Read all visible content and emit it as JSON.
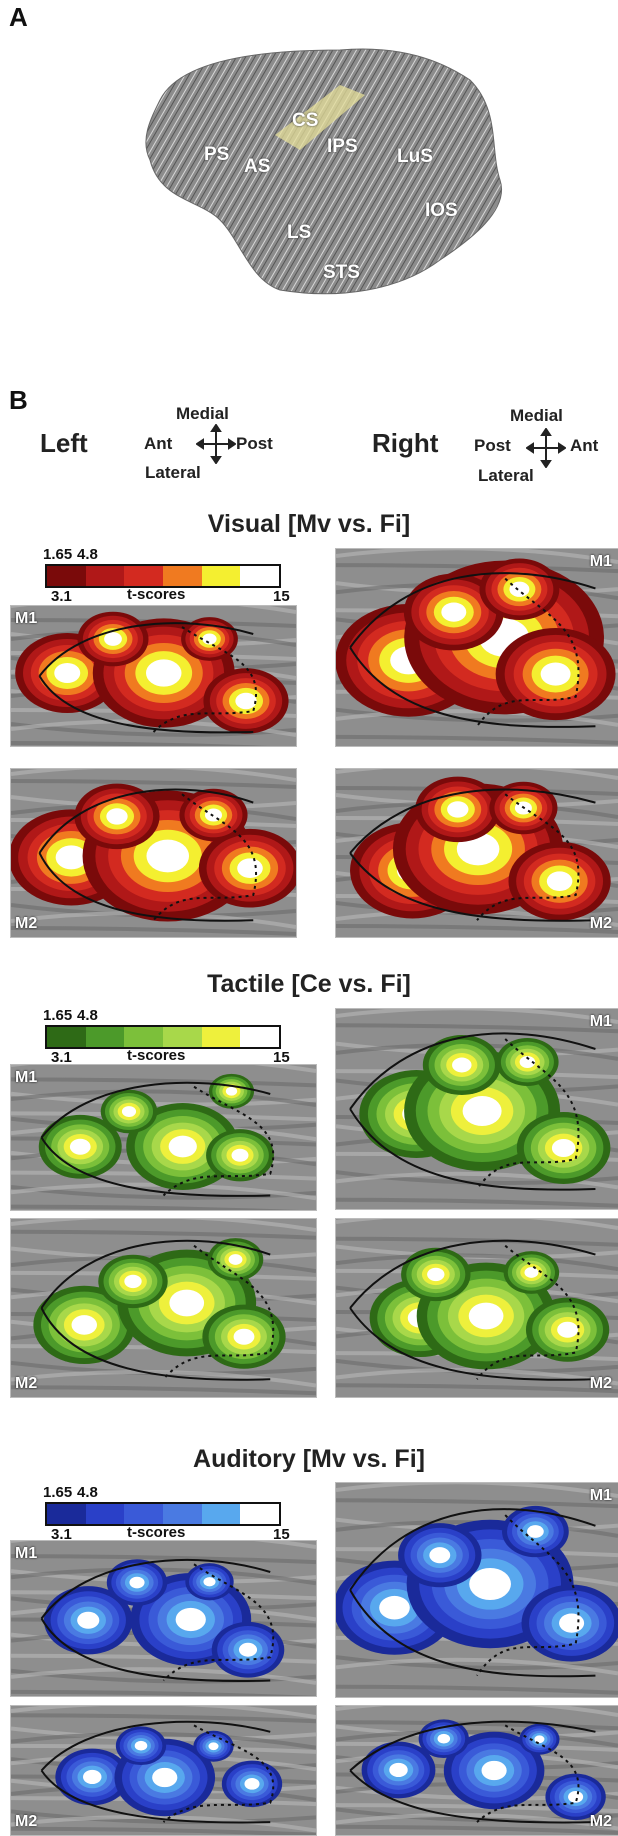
{
  "panel_a": {
    "letter": "A"
  },
  "panel_b": {
    "letter": "B"
  },
  "sulci": {
    "ps": "PS",
    "as": "AS",
    "cs": "CS",
    "ips": "IPS",
    "lus": "LuS",
    "ios": "IOS",
    "ls": "LS",
    "sts": "STS"
  },
  "orientation": {
    "left": {
      "side": "Left",
      "top": "Medial",
      "bottom": "Lateral",
      "west": "Ant",
      "east": "Post"
    },
    "right": {
      "side": "Right",
      "top": "Medial",
      "bottom": "Lateral",
      "west": "Post",
      "east": "Ant"
    }
  },
  "colorbar_labels": {
    "v1": "1.65",
    "v2": "4.8",
    "v3": "3.1",
    "title": "t-scores",
    "v4": "15"
  },
  "sections": [
    {
      "title": "Visual [Mv vs. Fi]",
      "colors": [
        "#7a0a0a",
        "#b01818",
        "#d32a20",
        "#f07a20",
        "#f4ef30",
        "#ffffff"
      ]
    },
    {
      "title": "Tactile [Ce vs. Fi]",
      "colors": [
        "#2e6a16",
        "#4c9a2a",
        "#7cc03a",
        "#a8d84a",
        "#eef03c",
        "#ffffff"
      ]
    },
    {
      "title": "Auditory [Mv vs. Fi]",
      "colors": [
        "#1a2a9a",
        "#2a40c8",
        "#3a5ad8",
        "#4a7ae2",
        "#58a8ee",
        "#ffffff"
      ]
    }
  ],
  "monkey_labels": {
    "m1": "M1",
    "m2": "M2"
  }
}
